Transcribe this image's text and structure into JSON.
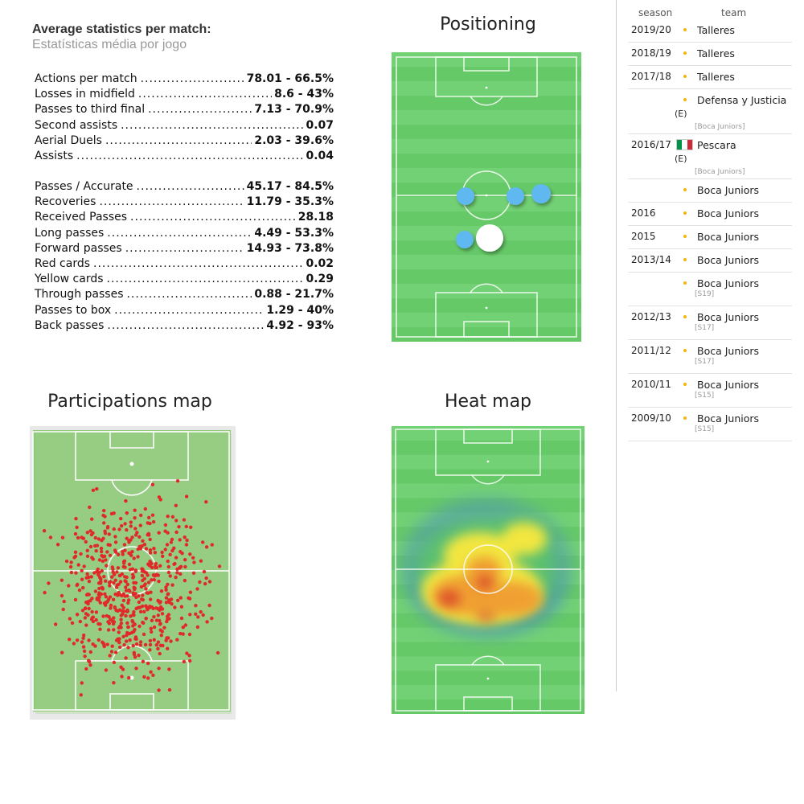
{
  "stats": {
    "title": "Average statistics per match:",
    "subtitle": "Estatísticas média por jogo",
    "group1": [
      {
        "label": "Actions per match",
        "value": "78.01 - 66.5%"
      },
      {
        "label": "Losses in midfield",
        "value": "8.6 - 43%"
      },
      {
        "label": "Passes to third final",
        "value": "7.13 - 70.9%"
      },
      {
        "label": "Second assists",
        "value": "0.07"
      },
      {
        "label": "Aerial Duels ",
        "value": "2.03 - 39.6%"
      },
      {
        "label": "Assists",
        "value": "0.04"
      }
    ],
    "group2": [
      {
        "label": "Passes / Accurate",
        "value": "45.17 - 84.5%"
      },
      {
        "label": "Recoveries",
        "value": "11.79 - 35.3%"
      },
      {
        "label": "Received Passes",
        "value": "28.18"
      },
      {
        "label": "Long passes",
        "value": "4.49 - 53.3%"
      },
      {
        "label": "Forward passes",
        "value": "14.93 - 73.8%"
      },
      {
        "label": "Red cards",
        "value": "0.02"
      },
      {
        "label": "Yellow cards",
        "value": "0.29"
      },
      {
        "label": "Through passes",
        "value": "0.88 - 21.7%"
      },
      {
        "label": "Passes to box",
        "value": "1.29 - 40%"
      },
      {
        "label": "Back passes",
        "value": "4.92 - 93%"
      }
    ]
  },
  "sections": {
    "positioning": "Positioning",
    "participations": "Participations map",
    "heatmap": "Heat map"
  },
  "colors": {
    "pitch_light": "#72d174",
    "pitch_dark": "#66c968",
    "participations_pitch": "#8fc97a",
    "participation_dot": "#e02a2a",
    "teammate_dot": "#5fb8f0",
    "player_dot": "#ffffff"
  },
  "career": {
    "head_season": "season",
    "head_team": "team",
    "rows": [
      {
        "season": "2019/20",
        "flag": "argentina-flag",
        "team": "Talleres",
        "note": "",
        "sub": ""
      },
      {
        "season": "2018/19",
        "flag": "argentina-flag",
        "team": "Talleres",
        "note": "",
        "sub": ""
      },
      {
        "season": "2017/18",
        "flag": "argentina-flag",
        "team": "Talleres",
        "note": "",
        "sub": ""
      },
      {
        "season": "",
        "flag": "argentina-flag",
        "team": "Defensa y Justicia",
        "note": "(E)",
        "sub": "[Boca Juniors]"
      },
      {
        "season": "2016/17",
        "flag": "italy-flag",
        "team": "Pescara",
        "note": "(E)",
        "sub": "[Boca Juniors]"
      },
      {
        "season": "",
        "flag": "argentina-flag",
        "team": "Boca Juniors",
        "note": "",
        "sub": ""
      },
      {
        "season": "2016",
        "flag": "argentina-flag",
        "team": "Boca Juniors",
        "note": "",
        "sub": ""
      },
      {
        "season": "2015",
        "flag": "argentina-flag",
        "team": "Boca Juniors",
        "note": "",
        "sub": ""
      },
      {
        "season": "2013/14",
        "flag": "argentina-flag",
        "team": "Boca Juniors",
        "note": "",
        "sub": ""
      },
      {
        "season": "",
        "flag": "argentina-flag",
        "team": "Boca Juniors",
        "note": "",
        "sub": "[S19]"
      },
      {
        "season": "2012/13",
        "flag": "argentina-flag",
        "team": "Boca Juniors",
        "note": "",
        "sub": "[S17]"
      },
      {
        "season": "2011/12",
        "flag": "argentina-flag",
        "team": "Boca Juniors",
        "note": "",
        "sub": "[S17]"
      },
      {
        "season": "2010/11",
        "flag": "argentina-flag",
        "team": "Boca Juniors",
        "note": "",
        "sub": "[S15]"
      },
      {
        "season": "2009/10",
        "flag": "argentina-flag",
        "team": "Boca Juniors",
        "note": "",
        "sub": "[S15]"
      }
    ]
  }
}
